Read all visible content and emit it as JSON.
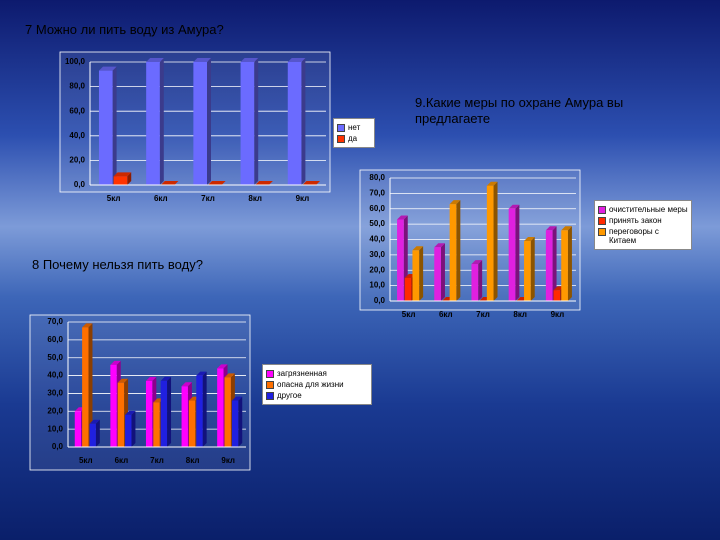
{
  "chart_data": [
    {
      "type": "bar",
      "title": "7 Можно ли пить воду из Амура?",
      "categories": [
        "5кл",
        "6кл",
        "7кл",
        "8кл",
        "9кл"
      ],
      "series": [
        {
          "name": "нет",
          "color": "#6b6bff",
          "values": [
            93,
            100,
            100,
            100,
            100
          ]
        },
        {
          "name": "да",
          "color": "#ff3300",
          "values": [
            7,
            0,
            0,
            0,
            0
          ]
        }
      ],
      "ylim": [
        0,
        100
      ],
      "yticks": [
        {
          "value": 0,
          "label": "0,0"
        },
        {
          "value": 20,
          "label": "20,0"
        },
        {
          "value": 40,
          "label": "40,0"
        },
        {
          "value": 60,
          "label": "60,0"
        },
        {
          "value": 80,
          "label": "80,0"
        },
        {
          "value": 100,
          "label": "100,0"
        }
      ],
      "grid": true,
      "legend": "right"
    },
    {
      "type": "bar",
      "title": "9.Какие меры по охране Амура вы предлагаете",
      "categories": [
        "5кл",
        "6кл",
        "7кл",
        "8кл",
        "9кл"
      ],
      "series": [
        {
          "name": "очистительные меры",
          "color": "#e020e0",
          "values": [
            53,
            35,
            24,
            60,
            46
          ]
        },
        {
          "name": "принять закон",
          "color": "#ff2a00",
          "values": [
            15,
            0,
            0,
            0,
            7
          ]
        },
        {
          "name": "переговоры с Китаем",
          "color": "#ff9900",
          "values": [
            33,
            63,
            75,
            39,
            46
          ]
        }
      ],
      "ylim": [
        0,
        80
      ],
      "yticks": [
        {
          "value": 0,
          "label": "0,0"
        },
        {
          "value": 10,
          "label": "10,0"
        },
        {
          "value": 20,
          "label": "20,0"
        },
        {
          "value": 30,
          "label": "30,0"
        },
        {
          "value": 40,
          "label": "40,0"
        },
        {
          "value": 50,
          "label": "50,0"
        },
        {
          "value": 60,
          "label": "60,0"
        },
        {
          "value": 70,
          "label": "70,0"
        },
        {
          "value": 80,
          "label": "80,0"
        }
      ],
      "grid": true,
      "legend": "right"
    },
    {
      "type": "bar",
      "title": "8 Почему нельзя пить воду?",
      "categories": [
        "5кл",
        "6кл",
        "7кл",
        "8кл",
        "9кл"
      ],
      "series": [
        {
          "name": "загрязненная",
          "color": "#ff00ff",
          "values": [
            20,
            46,
            37,
            34,
            44
          ]
        },
        {
          "name": "опасна для жизни",
          "color": "#ff7000",
          "values": [
            67,
            36,
            25,
            26,
            39
          ]
        },
        {
          "name": "другое",
          "color": "#2020e0",
          "values": [
            13,
            18,
            37,
            40,
            26
          ]
        }
      ],
      "ylim": [
        0,
        70
      ],
      "yticks": [
        {
          "value": 0,
          "label": "0,0"
        },
        {
          "value": 10,
          "label": "10,0"
        },
        {
          "value": 20,
          "label": "20,0"
        },
        {
          "value": 30,
          "label": "30,0"
        },
        {
          "value": 40,
          "label": "40,0"
        },
        {
          "value": 50,
          "label": "50,0"
        },
        {
          "value": 60,
          "label": "60,0"
        },
        {
          "value": 70,
          "label": "70,0"
        }
      ],
      "grid": true,
      "legend": "right"
    }
  ]
}
